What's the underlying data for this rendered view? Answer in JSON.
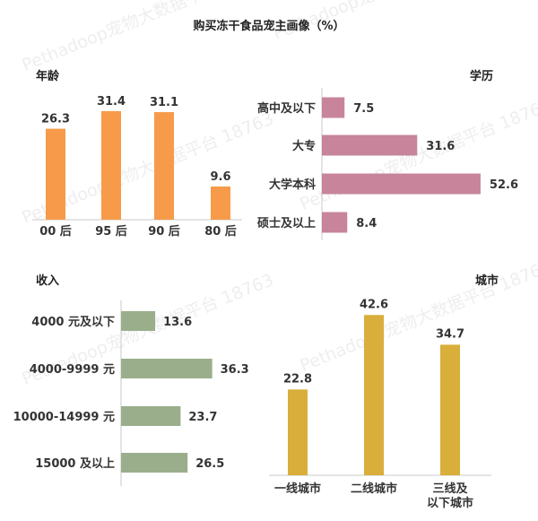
{
  "title": "购买冻干食品宠主画像（%）",
  "watermark": "Pethadoop宠物大数据平台 18763",
  "colors": {
    "age": "#F79B4A",
    "edu": "#C7849B",
    "income": "#9AAE8C",
    "city": "#D9AE3A"
  },
  "chart_data": [
    {
      "type": "bar",
      "title": "年龄",
      "categories": [
        "00 后",
        "95 后",
        "90 后",
        "80 后"
      ],
      "values": [
        26.3,
        31.4,
        31.1,
        9.6
      ],
      "ylim": [
        0,
        35
      ]
    },
    {
      "type": "bar",
      "orientation": "horizontal",
      "title": "学历",
      "categories": [
        "高中及以下",
        "大专",
        "大学本科",
        "硕士及以上"
      ],
      "values": [
        7.5,
        31.6,
        52.6,
        8.4
      ],
      "xlim": [
        0,
        55
      ]
    },
    {
      "type": "bar",
      "orientation": "horizontal",
      "title": "收入",
      "categories": [
        "4000 元及以下",
        "4000-9999 元",
        "10000-14999 元",
        "15000 及以上"
      ],
      "values": [
        13.6,
        36.3,
        23.7,
        26.5
      ],
      "xlim": [
        0,
        40
      ]
    },
    {
      "type": "bar",
      "title": "城市",
      "categories": [
        [
          "一线城市"
        ],
        [
          "二线城市"
        ],
        [
          "三线及",
          "以下城市"
        ]
      ],
      "values": [
        22.8,
        42.6,
        34.7
      ],
      "ylim": [
        0,
        46
      ]
    }
  ]
}
